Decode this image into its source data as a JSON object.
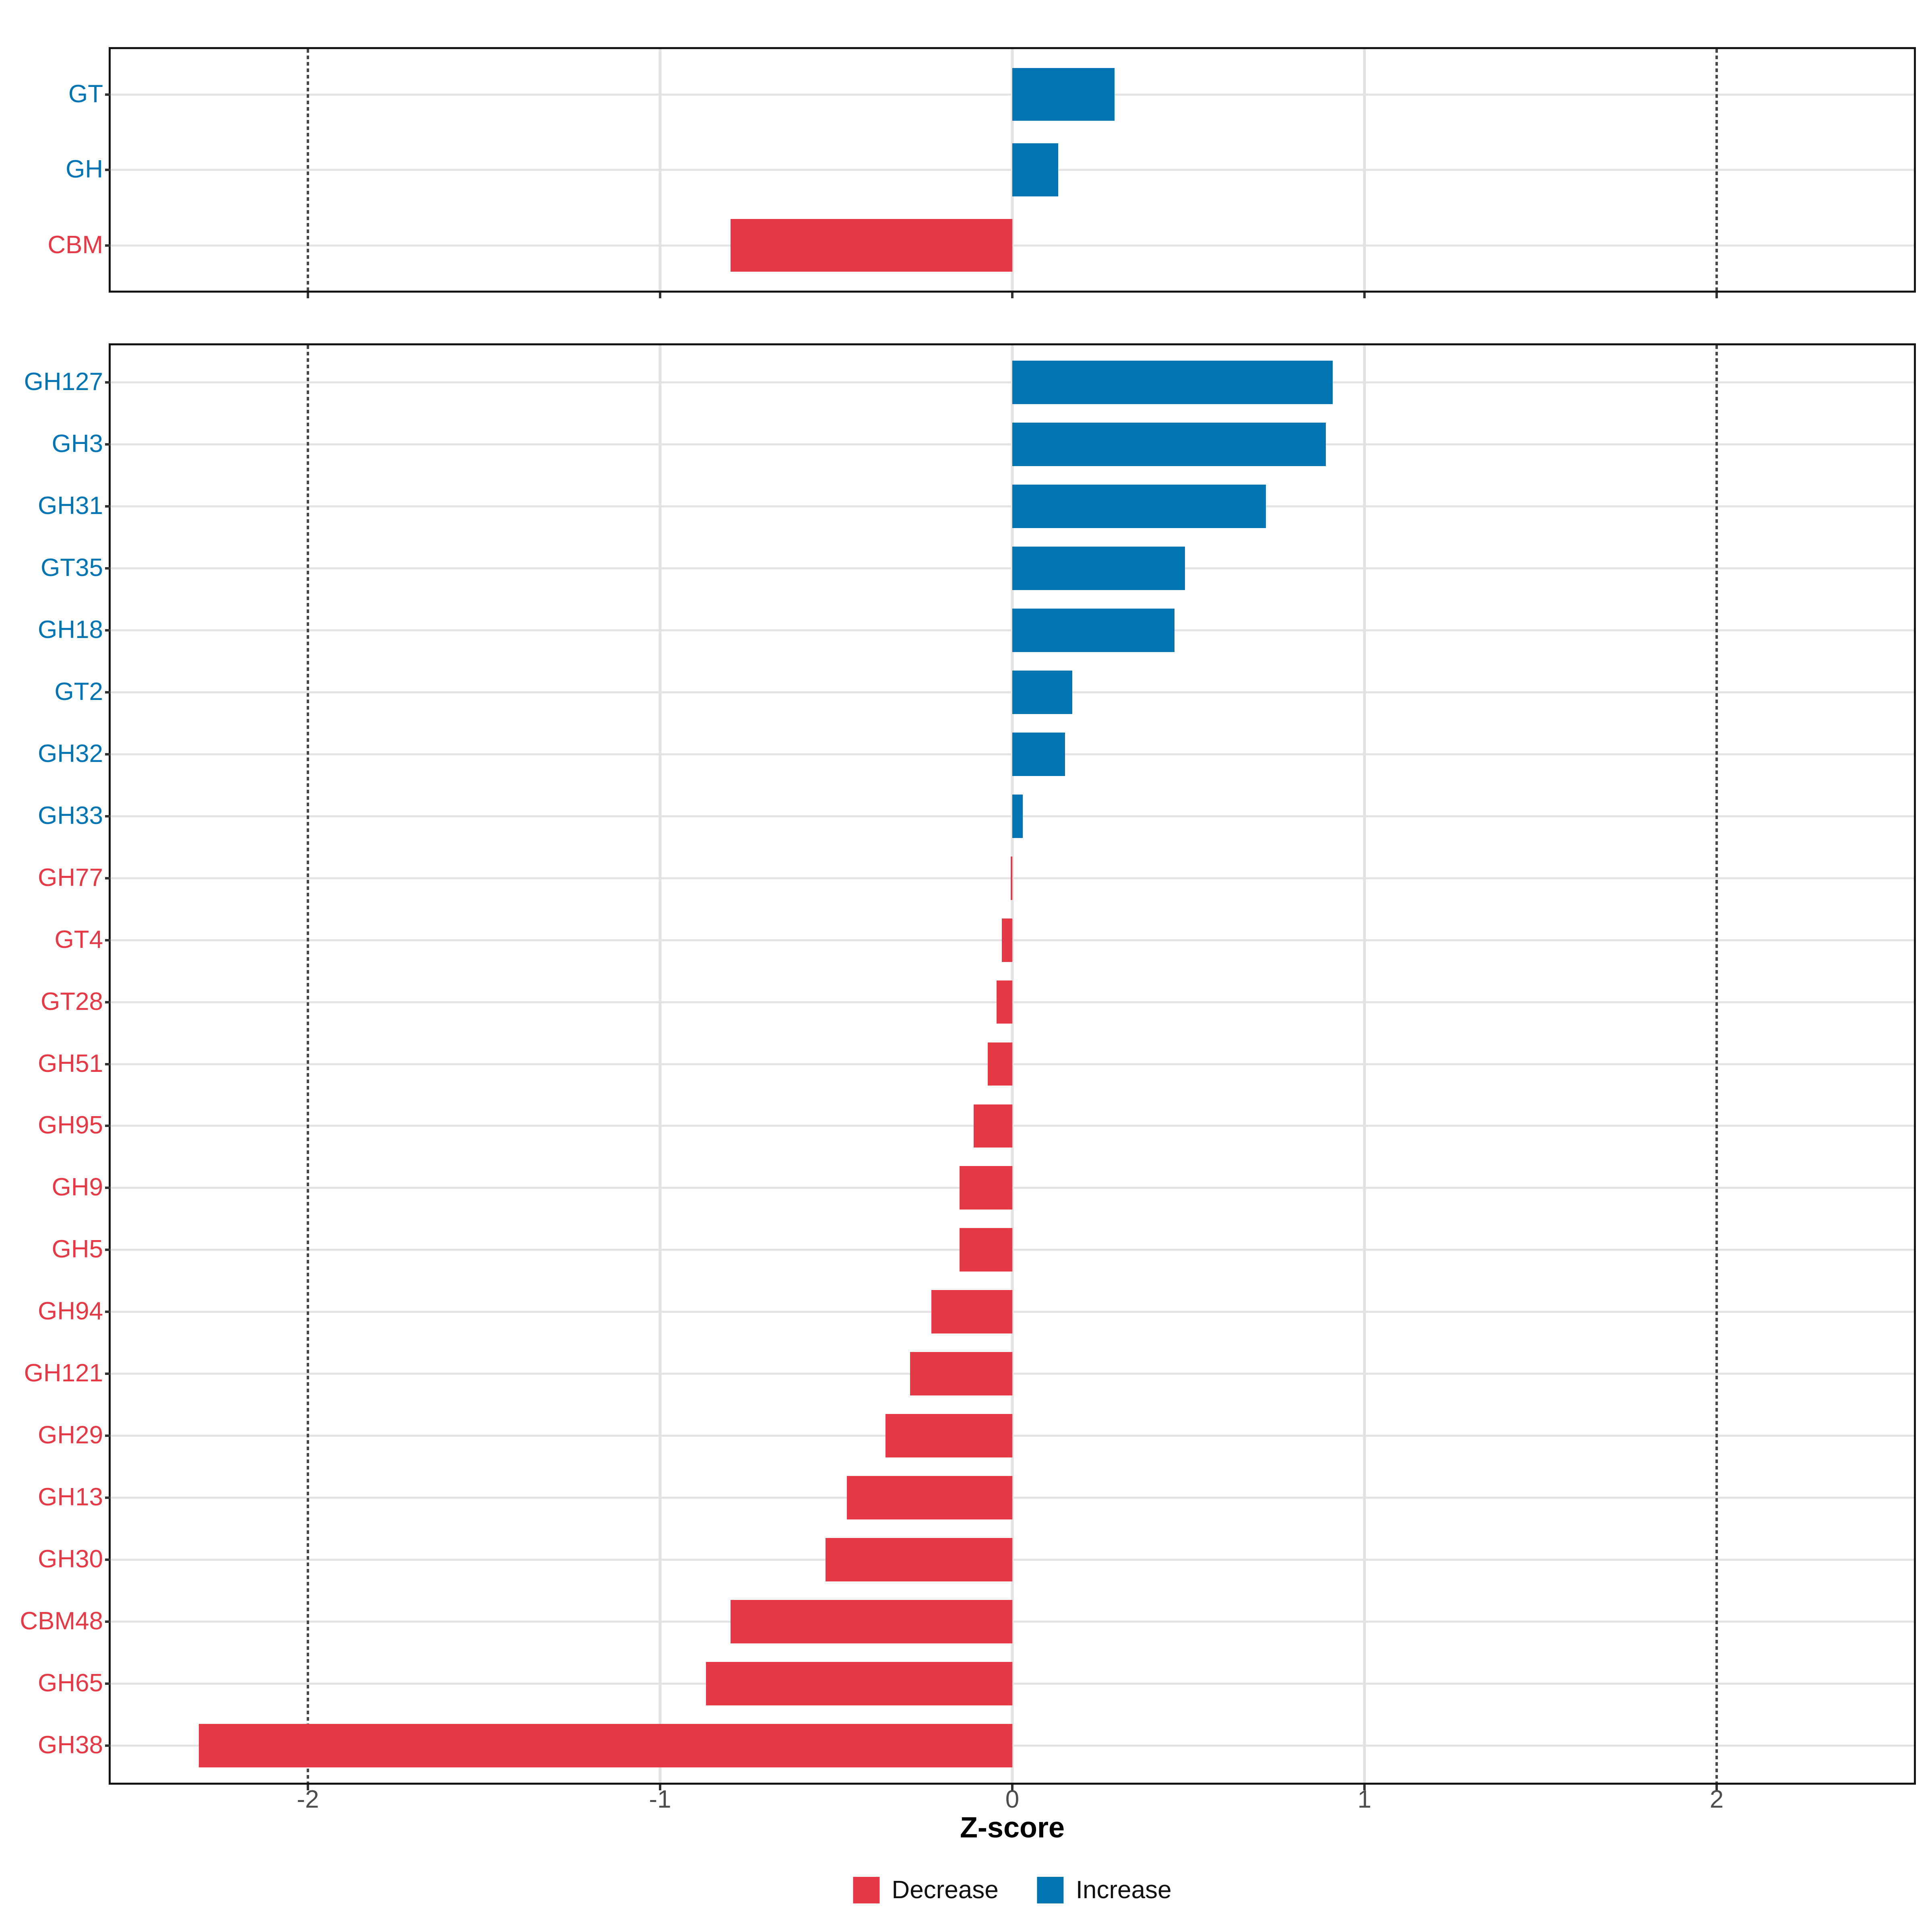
{
  "chart_data": [
    {
      "panel": "cazyme-classes",
      "type": "bar",
      "orientation": "horizontal",
      "categories": [
        "GT",
        "GH",
        "CBM"
      ],
      "values": [
        0.29,
        0.13,
        -0.8
      ],
      "series_rule": "blue Increase if value >= 0, red Decrease if value < 0"
    },
    {
      "panel": "cazyme-families",
      "type": "bar",
      "orientation": "horizontal",
      "categories": [
        "GH127",
        "GH3",
        "GH31",
        "GT35",
        "GH18",
        "GT2",
        "GH32",
        "GH33",
        "GH77",
        "GT4",
        "GT28",
        "GH51",
        "GH95",
        "GH9",
        "GH5",
        "GH94",
        "GH121",
        "GH29",
        "GH13",
        "GH30",
        "CBM48",
        "GH65",
        "GH38"
      ],
      "values": [
        0.91,
        0.89,
        0.72,
        0.49,
        0.46,
        0.17,
        0.15,
        0.03,
        -0.005,
        -0.03,
        -0.045,
        -0.07,
        -0.11,
        -0.15,
        -0.15,
        -0.23,
        -0.29,
        -0.36,
        -0.47,
        -0.53,
        -0.8,
        -0.87,
        -2.31
      ]
    }
  ],
  "x_axis": {
    "title": "Z-score",
    "ticks": [
      -2,
      -1,
      0,
      1,
      2
    ],
    "tick_labels": [
      "-2",
      "-1",
      "0",
      "1",
      "2"
    ],
    "range": [
      -2.56,
      2.56
    ],
    "gridlines": [
      -1,
      0,
      1
    ],
    "reference_lines": [
      -2,
      2
    ],
    "grid_on": true
  },
  "legend": {
    "position": "bottom-center",
    "items": [
      {
        "label": "Decrease",
        "color": "#E63946"
      },
      {
        "label": "Increase",
        "color": "#0174B3"
      }
    ]
  },
  "colors": {
    "increase": "#0174B3",
    "decrease": "#E63946",
    "grid": "#E2E2E2",
    "reference_line": "#474747",
    "panel_border": "#141414",
    "axis_text": "#4D4D4D",
    "axis_title": "#000000",
    "tick_mark": "#333333",
    "background": "#FFFFFF"
  }
}
